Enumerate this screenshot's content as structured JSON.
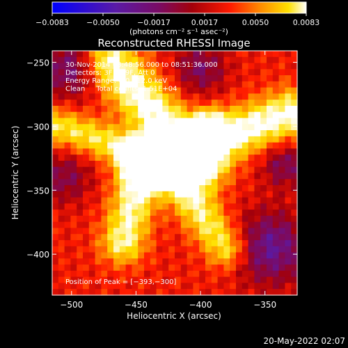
{
  "chart_data": {
    "type": "heatmap",
    "title": "Reconstructed RHESSI Image",
    "colorbar": {
      "min": -0.0083,
      "max": 0.0083,
      "tick_labels": [
        "-0.0083",
        "-0.0050",
        "-0.0017",
        "0.0017",
        "0.0050",
        "0.0083"
      ],
      "unit_label": "(photons cm⁻² s⁻¹ asec⁻²)"
    },
    "xlabel": "Heliocentric X (arcsec)",
    "ylabel": "Heliocentric Y (arcsec)",
    "xlim": [
      -515,
      -325
    ],
    "ylim": [
      -432,
      -241
    ],
    "x_ticks": [
      -500,
      -450,
      -400,
      -350
    ],
    "x_tick_labels": [
      "−500",
      "−450",
      "−400",
      "−350"
    ],
    "y_ticks": [
      -250,
      -300,
      -350,
      -400
    ],
    "y_tick_labels": [
      "−250",
      "−300",
      "−350",
      "−400"
    ],
    "annotations": [
      "30-Nov-2014 08:48:56.000 to 08:51:36.000",
      "Detectors: 3F 8F 9F, Att 0",
      "Energy Range: 6.0 - 12.0 keV",
      "Clean     Total counts: 1.51E+04"
    ],
    "peak_label": "Position of Peak = [−393,−300]",
    "peak": [
      -393,
      -300
    ],
    "colormap": [
      "#0000ff",
      "#5a1aa6",
      "#7a0b64",
      "#a3000a",
      "#ff1a00",
      "#ff8c00",
      "#ffe100",
      "#ffffff"
    ],
    "grid": false
  },
  "footer": {
    "timestamp": "20-May-2022 02:07"
  }
}
